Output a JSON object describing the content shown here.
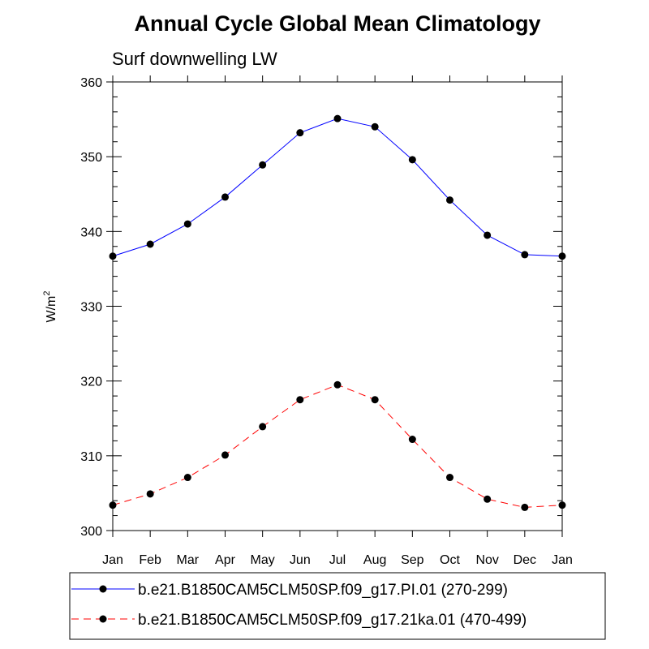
{
  "chart_data": {
    "type": "line",
    "title": "Annual Cycle Global Mean Climatology",
    "subtitle": "Surf downwelling LW",
    "ylabel": "W/m",
    "ylabel_superscript": "2",
    "xlabel": "",
    "categories": [
      "Jan",
      "Feb",
      "Mar",
      "Apr",
      "May",
      "Jun",
      "Jul",
      "Aug",
      "Sep",
      "Oct",
      "Nov",
      "Dec",
      "Jan"
    ],
    "ylim": [
      300,
      360
    ],
    "yticks": [
      300,
      310,
      320,
      330,
      340,
      350,
      360
    ],
    "legend_position": "bottom",
    "series": [
      {
        "name": "b.e21.B1850CAM5CLM50SP.f09_g17.PI.01 (270-299)",
        "color": "#0000ff",
        "style": "solid",
        "values": [
          336.7,
          338.3,
          341.0,
          344.6,
          348.9,
          353.2,
          355.1,
          354.0,
          349.6,
          344.2,
          339.5,
          336.9,
          336.7
        ]
      },
      {
        "name": "b.e21.B1850CAM5CLM50SP.f09_g17.21ka.01 (470-499)",
        "color": "#ff0000",
        "style": "dashed",
        "values": [
          303.4,
          304.9,
          307.1,
          310.1,
          313.9,
          317.5,
          319.5,
          317.5,
          312.2,
          307.1,
          304.2,
          303.1,
          303.4
        ]
      }
    ]
  }
}
